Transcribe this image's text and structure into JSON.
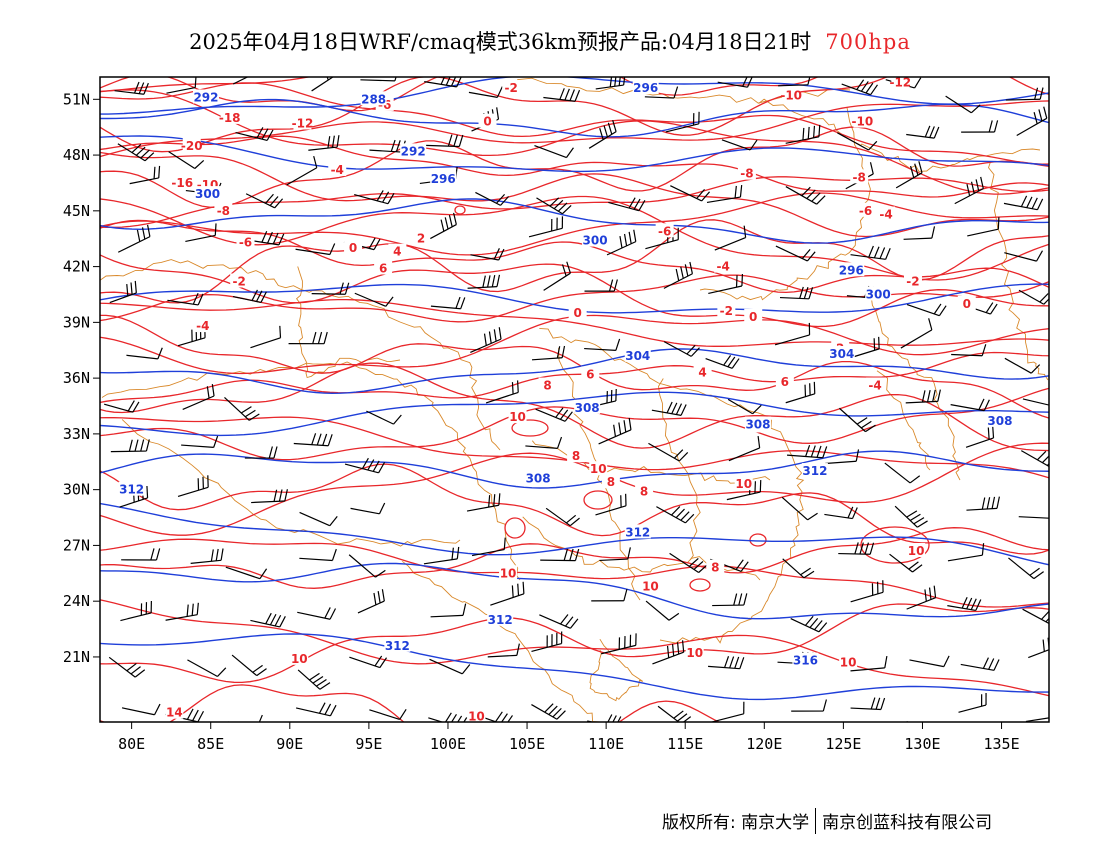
{
  "title": {
    "main": "2025年04月18日WRF/cmaq模式36km预报产品:04月18日21时",
    "level": "700hpa"
  },
  "colors": {
    "temperature": "#e8272b",
    "geopotential": "#1f3fd9",
    "wind": "#000000",
    "borders": "#d9892b",
    "frame": "#000000"
  },
  "axes": {
    "lon": {
      "min": 78,
      "max": 138,
      "ticks": [
        80,
        85,
        90,
        95,
        100,
        105,
        110,
        115,
        120,
        125,
        130,
        135
      ],
      "labels": [
        "80E",
        "85E",
        "90E",
        "95E",
        "100E",
        "105E",
        "110E",
        "115E",
        "120E",
        "125E",
        "130E",
        "135E"
      ]
    },
    "lat": {
      "min": 17.5,
      "max": 52.2,
      "ticks": [
        21,
        24,
        27,
        30,
        33,
        36,
        39,
        42,
        45,
        48,
        51
      ],
      "labels": [
        "21N",
        "24N",
        "27N",
        "30N",
        "33N",
        "36N",
        "39N",
        "42N",
        "45N",
        "48N",
        "51N"
      ]
    }
  },
  "temperature_labels": [
    {
      "t": "-18",
      "lon": 86.2,
      "lat": 50.0
    },
    {
      "t": "-12",
      "lon": 90.8,
      "lat": 49.7
    },
    {
      "t": "-20",
      "lon": 83.8,
      "lat": 48.5
    },
    {
      "t": "-16",
      "lon": 83.2,
      "lat": 46.5
    },
    {
      "t": "-10",
      "lon": 84.8,
      "lat": 46.4
    },
    {
      "t": "-8",
      "lon": 85.8,
      "lat": 45.0
    },
    {
      "t": "-6",
      "lon": 87.2,
      "lat": 43.3
    },
    {
      "t": "0",
      "lon": 94.0,
      "lat": 43.0
    },
    {
      "t": "4",
      "lon": 96.8,
      "lat": 42.8
    },
    {
      "t": "-2",
      "lon": 86.8,
      "lat": 41.2
    },
    {
      "t": "-4",
      "lon": 84.5,
      "lat": 38.8
    },
    {
      "t": "2",
      "lon": 98.3,
      "lat": 43.5
    },
    {
      "t": "6",
      "lon": 95.9,
      "lat": 41.9
    },
    {
      "t": "-2",
      "lon": 104.0,
      "lat": 51.6
    },
    {
      "t": "0",
      "lon": 102.5,
      "lat": 49.8
    },
    {
      "t": "-4",
      "lon": 93.0,
      "lat": 47.2
    },
    {
      "t": "-6",
      "lon": 113.7,
      "lat": 43.9
    },
    {
      "t": "-8",
      "lon": 118.9,
      "lat": 47.0
    },
    {
      "t": "-10",
      "lon": 121.7,
      "lat": 51.2
    },
    {
      "t": "-10",
      "lon": 126.2,
      "lat": 49.8
    },
    {
      "t": "-12",
      "lon": 128.6,
      "lat": 51.9
    },
    {
      "t": "-8",
      "lon": 126.0,
      "lat": 46.8
    },
    {
      "t": "-6",
      "lon": 126.4,
      "lat": 45.0
    },
    {
      "t": "-4",
      "lon": 127.7,
      "lat": 44.8
    },
    {
      "t": "-4",
      "lon": 117.4,
      "lat": 42.0
    },
    {
      "t": "-2",
      "lon": 117.6,
      "lat": 39.6
    },
    {
      "t": "-2",
      "lon": 129.4,
      "lat": 41.2
    },
    {
      "t": "0",
      "lon": 119.3,
      "lat": 39.3
    },
    {
      "t": "0",
      "lon": 108.2,
      "lat": 39.5
    },
    {
      "t": "0",
      "lon": 132.8,
      "lat": 40.0
    },
    {
      "t": "2",
      "lon": 124.8,
      "lat": 37.6
    },
    {
      "t": "-4",
      "lon": 127.0,
      "lat": 35.6
    },
    {
      "t": "4",
      "lon": 116.1,
      "lat": 36.3
    },
    {
      "t": "6",
      "lon": 109.0,
      "lat": 36.2
    },
    {
      "t": "6",
      "lon": 121.3,
      "lat": 35.8
    },
    {
      "t": "8",
      "lon": 106.3,
      "lat": 35.6
    },
    {
      "t": "10",
      "lon": 104.4,
      "lat": 33.9
    },
    {
      "t": "8",
      "lon": 108.1,
      "lat": 31.8
    },
    {
      "t": "10",
      "lon": 109.5,
      "lat": 31.1
    },
    {
      "t": "8",
      "lon": 112.4,
      "lat": 29.9
    },
    {
      "t": "8",
      "lon": 110.3,
      "lat": 30.4
    },
    {
      "t": "10",
      "lon": 118.7,
      "lat": 30.3
    },
    {
      "t": "8",
      "lon": 119.6,
      "lat": 33.4
    },
    {
      "t": "10",
      "lon": 103.8,
      "lat": 25.5
    },
    {
      "t": "10",
      "lon": 112.8,
      "lat": 24.8
    },
    {
      "t": "8",
      "lon": 116.9,
      "lat": 25.8
    },
    {
      "t": "10",
      "lon": 115.6,
      "lat": 21.2
    },
    {
      "t": "10",
      "lon": 129.6,
      "lat": 26.7
    },
    {
      "t": "10",
      "lon": 125.3,
      "lat": 20.7
    },
    {
      "t": "10",
      "lon": 90.6,
      "lat": 20.9
    },
    {
      "t": "14",
      "lon": 82.7,
      "lat": 18.0
    },
    {
      "t": "10",
      "lon": 101.8,
      "lat": 17.8
    },
    {
      "t": "-6",
      "lon": 96.0,
      "lat": 50.7
    }
  ],
  "height_labels": [
    {
      "t": "292",
      "lon": 84.7,
      "lat": 51.1
    },
    {
      "t": "288",
      "lon": 95.3,
      "lat": 51.0
    },
    {
      "t": "292",
      "lon": 97.8,
      "lat": 48.2
    },
    {
      "t": "296",
      "lon": 99.7,
      "lat": 46.7
    },
    {
      "t": "300",
      "lon": 84.8,
      "lat": 45.9
    },
    {
      "t": "300",
      "lon": 109.3,
      "lat": 43.4
    },
    {
      "t": "296",
      "lon": 112.5,
      "lat": 51.6
    },
    {
      "t": "296",
      "lon": 125.5,
      "lat": 41.8
    },
    {
      "t": "300",
      "lon": 127.2,
      "lat": 40.5
    },
    {
      "t": "304",
      "lon": 112.0,
      "lat": 37.2
    },
    {
      "t": "304",
      "lon": 124.9,
      "lat": 37.3
    },
    {
      "t": "308",
      "lon": 108.8,
      "lat": 34.4
    },
    {
      "t": "308",
      "lon": 134.9,
      "lat": 33.7
    },
    {
      "t": "308",
      "lon": 105.7,
      "lat": 30.6
    },
    {
      "t": "312",
      "lon": 112.0,
      "lat": 27.7
    },
    {
      "t": "312",
      "lon": 123.2,
      "lat": 31.0
    },
    {
      "t": "312",
      "lon": 80.0,
      "lat": 30.0
    },
    {
      "t": "312",
      "lon": 103.3,
      "lat": 23.0
    },
    {
      "t": "312",
      "lon": 96.8,
      "lat": 21.6
    },
    {
      "t": "316",
      "lon": 122.6,
      "lat": 20.8
    },
    {
      "t": "308",
      "lon": 119.6,
      "lat": 33.5
    }
  ],
  "footer": {
    "copyright": "版权所有: 南京大学",
    "company": "南京创蓝科技有限公司"
  }
}
